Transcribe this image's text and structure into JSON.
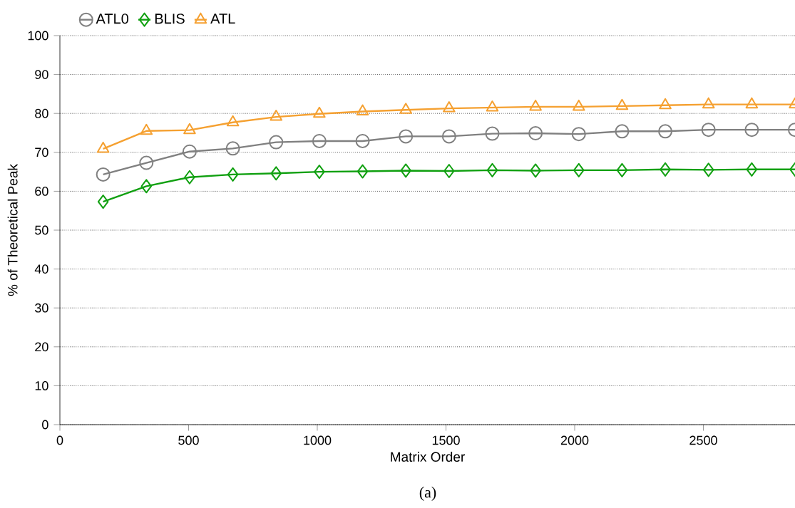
{
  "chart_data": {
    "type": "line",
    "xlabel": "Matrix Order",
    "ylabel": "% of Theoretical Peak",
    "annotations": [
      "(a)"
    ],
    "x": [
      168,
      336,
      504,
      672,
      840,
      1008,
      1176,
      1344,
      1512,
      1680,
      1848,
      2016,
      2184,
      2352,
      2520,
      2688,
      2856
    ],
    "series": [
      {
        "name": "ATL0",
        "color": "#808080",
        "marker": "circle",
        "values": [
          64.3,
          67.3,
          70.2,
          71.0,
          72.6,
          72.9,
          72.9,
          74.1,
          74.1,
          74.8,
          74.9,
          74.7,
          75.4,
          75.4,
          75.8,
          75.8,
          75.8
        ]
      },
      {
        "name": "BLIS",
        "color": "#10a010",
        "marker": "diamond",
        "values": [
          57.3,
          61.3,
          63.6,
          64.3,
          64.6,
          65.0,
          65.1,
          65.3,
          65.2,
          65.4,
          65.3,
          65.4,
          65.4,
          65.6,
          65.5,
          65.6,
          65.6
        ]
      },
      {
        "name": "ATL",
        "color": "#f5a030",
        "marker": "triangle",
        "values": [
          70.9,
          75.5,
          75.7,
          77.7,
          79.1,
          79.9,
          80.5,
          80.9,
          81.3,
          81.5,
          81.7,
          81.7,
          81.9,
          82.1,
          82.3,
          82.3,
          82.3
        ]
      }
    ],
    "xlim": [
      0,
      2856
    ],
    "xticks": [
      0,
      500,
      1000,
      1500,
      2000,
      2500
    ],
    "ylim": [
      0,
      100
    ],
    "yticks": [
      0,
      10,
      20,
      30,
      40,
      50,
      60,
      70,
      80,
      90,
      100
    ],
    "grid": "y",
    "legend": "top left",
    "line_style": "solid"
  }
}
